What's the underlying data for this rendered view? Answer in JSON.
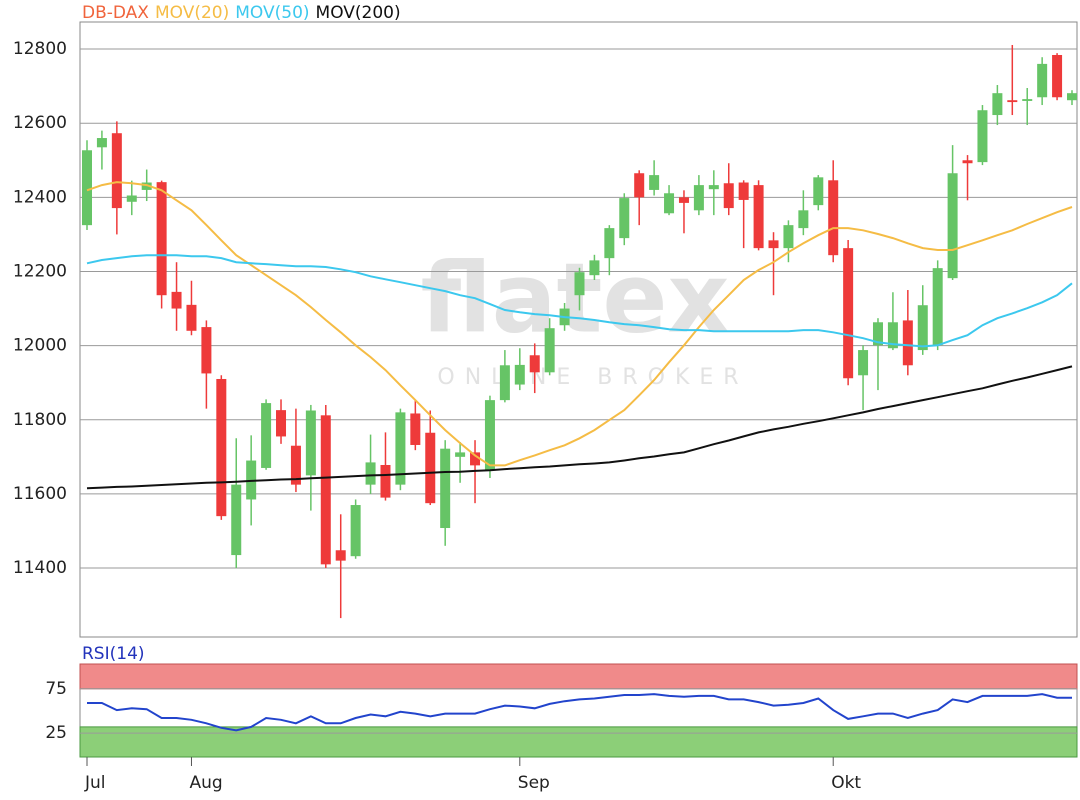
{
  "chart_data": [
    {
      "type": "candlestick",
      "watermark": "flatex",
      "watermark_subtitle": "ONLINE BROKER",
      "ylim": [
        11214,
        12873
      ],
      "yticks": [
        11400,
        11600,
        11800,
        12000,
        12200,
        12400,
        12600,
        12800
      ],
      "grid": true,
      "up_color": "#66c466",
      "down_color": "#ee3a3a",
      "series": [
        {
          "name": "DB-DAX",
          "color": "#f0643c",
          "open": [
            12325,
            12535,
            12573,
            12388,
            12420,
            12441,
            12145,
            12110,
            12050,
            11910,
            11435,
            11585,
            11670,
            11826,
            11730,
            11650,
            11812,
            11448,
            11432,
            11625,
            11678,
            11625,
            11817,
            11765,
            11508,
            11700,
            11712,
            11665,
            11853,
            11895,
            11974,
            11928,
            12055,
            12136,
            12190,
            12236,
            12290,
            12465,
            12420,
            12357,
            12400,
            12365,
            12422,
            12438,
            12440,
            12433,
            12284,
            12263,
            12317,
            12379,
            12446,
            12263,
            11920,
            12001,
            11993,
            12068,
            11988,
            12001,
            12182,
            12500,
            12495,
            12622,
            12662,
            12660,
            12670,
            12784,
            12662
          ],
          "high": [
            12554,
            12580,
            12605,
            12445,
            12475,
            12445,
            12225,
            12175,
            12068,
            11920,
            11750,
            11758,
            11855,
            11855,
            11830,
            11840,
            11840,
            11545,
            11585,
            11760,
            11766,
            11830,
            11852,
            11825,
            11745,
            11740,
            11745,
            11865,
            11988,
            11993,
            12006,
            12074,
            12115,
            12210,
            12245,
            12325,
            12411,
            12473,
            12500,
            12433,
            12419,
            12460,
            12473,
            12492,
            12446,
            12446,
            12306,
            12338,
            12419,
            12460,
            12500,
            12285,
            12001,
            12074,
            12144,
            12150,
            12163,
            12230,
            12541,
            12514,
            12649,
            12703,
            12811,
            12695,
            12778,
            12789,
            12689
          ],
          "low": [
            12312,
            12475,
            12300,
            12352,
            12390,
            12100,
            12040,
            12028,
            11830,
            11530,
            11400,
            11515,
            11665,
            11735,
            11605,
            11555,
            11400,
            11265,
            11425,
            11600,
            11582,
            11610,
            11718,
            11570,
            11460,
            11630,
            11575,
            11643,
            11847,
            11880,
            11872,
            11920,
            12040,
            12095,
            12177,
            12190,
            12271,
            12325,
            12405,
            12352,
            12303,
            12352,
            12352,
            12352,
            12263,
            12257,
            12136,
            12225,
            12298,
            12365,
            12225,
            11893,
            11826,
            11880,
            11988,
            11920,
            11975,
            11988,
            12177,
            12392,
            12487,
            12595,
            12622,
            12595,
            12649,
            12662,
            12649
          ],
          "close": [
            12527,
            12560,
            12371,
            12405,
            12440,
            12136,
            12100,
            12040,
            11925,
            11540,
            11625,
            11690,
            11845,
            11755,
            11625,
            11825,
            11410,
            11420,
            11570,
            11685,
            11590,
            11820,
            11732,
            11575,
            11722,
            11712,
            11677,
            11853,
            11947,
            11948,
            11928,
            12047,
            12100,
            12198,
            12230,
            12317,
            12398,
            12400,
            12460,
            12411,
            12385,
            12433,
            12433,
            12371,
            12393,
            12263,
            12263,
            12325,
            12365,
            12454,
            12244,
            11912,
            11988,
            12063,
            12063,
            11947,
            12109,
            12209,
            12465,
            12492,
            12635,
            12681,
            12657,
            12665,
            12760,
            12670,
            12681
          ]
        },
        {
          "name": "MOV(20)",
          "type": "line",
          "color": "#f5bc45",
          "values": [
            12419,
            12433,
            12441,
            12438,
            12433,
            12419,
            12392,
            12365,
            12325,
            12284,
            12244,
            12217,
            12190,
            12163,
            12136,
            12104,
            12069,
            12036,
            12001,
            11969,
            11934,
            11893,
            11853,
            11812,
            11772,
            11737,
            11704,
            11677,
            11677,
            11691,
            11704,
            11718,
            11731,
            11750,
            11772,
            11799,
            11826,
            11866,
            11907,
            11955,
            12001,
            12050,
            12096,
            12136,
            12177,
            12204,
            12225,
            12252,
            12276,
            12298,
            12317,
            12317,
            12311,
            12301,
            12290,
            12276,
            12263,
            12258,
            12258,
            12271,
            12284,
            12298,
            12311,
            12328,
            12344,
            12360,
            12374
          ]
        },
        {
          "name": "MOV(50)",
          "type": "line",
          "color": "#3cc8ee",
          "values": [
            12222,
            12231,
            12236,
            12241,
            12244,
            12244,
            12244,
            12241,
            12241,
            12236,
            12225,
            12222,
            12220,
            12217,
            12214,
            12214,
            12212,
            12206,
            12198,
            12187,
            12179,
            12171,
            12163,
            12155,
            12147,
            12136,
            12128,
            12112,
            12096,
            12090,
            12085,
            12082,
            12077,
            12074,
            12069,
            12063,
            12058,
            12055,
            12050,
            12044,
            12042,
            12042,
            12039,
            12039,
            12039,
            12039,
            12039,
            12039,
            12042,
            12042,
            12036,
            12028,
            12020,
            12009,
            12004,
            12001,
            11998,
            12001,
            12015,
            12028,
            12055,
            12074,
            12087,
            12101,
            12117,
            12136,
            12168
          ]
        },
        {
          "name": "MOV(200)",
          "type": "line",
          "color": "#111111",
          "values": [
            11615,
            11617,
            11619,
            11620,
            11622,
            11624,
            11626,
            11628,
            11630,
            11631,
            11633,
            11635,
            11637,
            11639,
            11640,
            11642,
            11644,
            11646,
            11648,
            11650,
            11651,
            11653,
            11655,
            11657,
            11659,
            11660,
            11662,
            11664,
            11667,
            11669,
            11672,
            11674,
            11677,
            11680,
            11682,
            11685,
            11690,
            11696,
            11701,
            11707,
            11712,
            11723,
            11734,
            11744,
            11755,
            11766,
            11774,
            11781,
            11789,
            11796,
            11804,
            11812,
            11820,
            11829,
            11837,
            11845,
            11853,
            11861,
            11869,
            11877,
            11885,
            11895,
            11905,
            11914,
            11924,
            11934,
            11944
          ]
        }
      ]
    },
    {
      "type": "line",
      "title": "RSI(14)",
      "title_color": "#2233bb",
      "categories": [
        "Jul",
        null,
        null,
        null,
        null,
        null,
        null,
        "Aug",
        null,
        null,
        null,
        null,
        null,
        null,
        null,
        null,
        null,
        null,
        null,
        null,
        null,
        null,
        null,
        null,
        null,
        null,
        null,
        null,
        null,
        "Sep",
        null,
        null,
        null,
        null,
        null,
        null,
        null,
        null,
        null,
        null,
        null,
        null,
        null,
        null,
        null,
        null,
        null,
        null,
        null,
        null,
        "Okt",
        null,
        null,
        null,
        null,
        null,
        null,
        null,
        null,
        null,
        null,
        null,
        null,
        null,
        null,
        null,
        null
      ],
      "ylim": [
        -2,
        103
      ],
      "yticks": [
        25,
        75
      ],
      "overbought": 75,
      "oversold": 32,
      "overbought_color": "#f08a8a",
      "oversold_color": "#8ccf78",
      "series": [
        {
          "name": "RSI(14)",
          "color": "#2244cc",
          "values": [
            59,
            59,
            51,
            53,
            52,
            42,
            42,
            40,
            36,
            31,
            28,
            32,
            42,
            40,
            36,
            44,
            36,
            36,
            42,
            46,
            44,
            49,
            47,
            44,
            47,
            47,
            47,
            52,
            56,
            55,
            53,
            58,
            61,
            63,
            64,
            66,
            68,
            68,
            69,
            67,
            66,
            67,
            67,
            63,
            63,
            60,
            56,
            57,
            59,
            64,
            51,
            41,
            44,
            47,
            47,
            42,
            47,
            51,
            63,
            60,
            67,
            67,
            67,
            67,
            69,
            65,
            65
          ]
        }
      ]
    }
  ]
}
